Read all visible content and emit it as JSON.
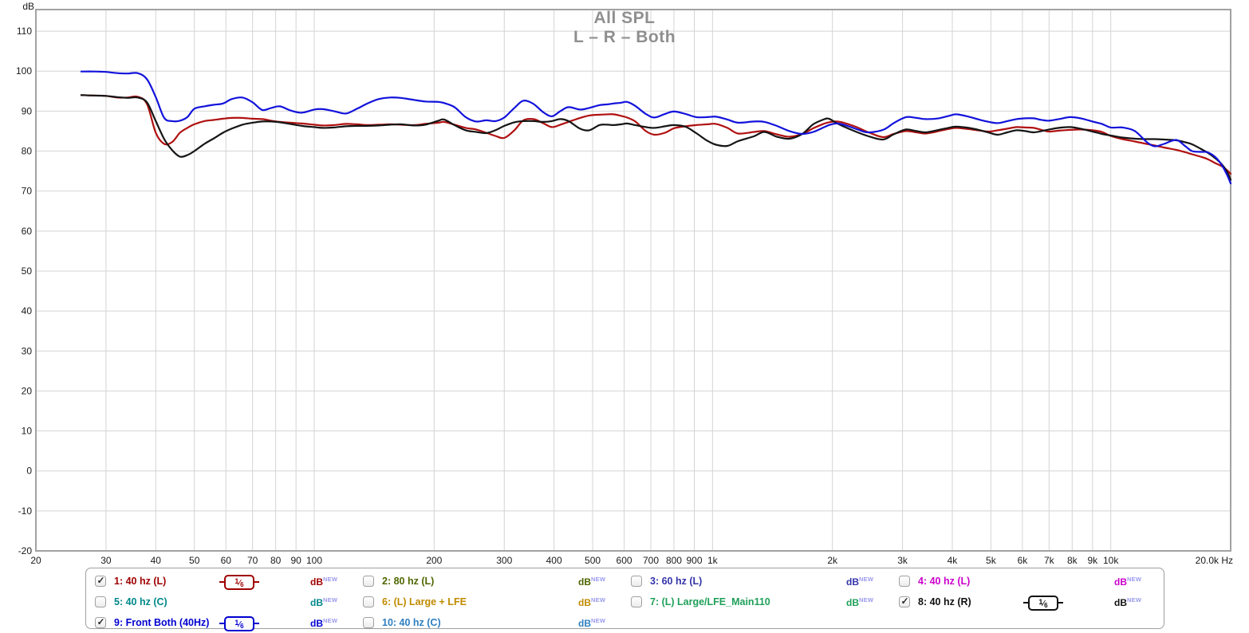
{
  "title": "All SPL",
  "subtitle": "L – R – Both",
  "axes": {
    "y_unit": "dB",
    "y_ticks": [
      -20,
      -10,
      0,
      10,
      20,
      30,
      40,
      50,
      60,
      70,
      80,
      90,
      100,
      110
    ],
    "x_ticks": [
      {
        "f": 20,
        "label": "20"
      },
      {
        "f": 30,
        "label": "30"
      },
      {
        "f": 40,
        "label": "40"
      },
      {
        "f": 50,
        "label": "50"
      },
      {
        "f": 60,
        "label": "60"
      },
      {
        "f": 70,
        "label": "70"
      },
      {
        "f": 80,
        "label": "80"
      },
      {
        "f": 90,
        "label": "90"
      },
      {
        "f": 100,
        "label": "100"
      },
      {
        "f": 200,
        "label": "200"
      },
      {
        "f": 300,
        "label": "300"
      },
      {
        "f": 400,
        "label": "400"
      },
      {
        "f": 500,
        "label": "500"
      },
      {
        "f": 600,
        "label": "600"
      },
      {
        "f": 700,
        "label": "700"
      },
      {
        "f": 800,
        "label": "800"
      },
      {
        "f": 900,
        "label": "900"
      },
      {
        "f": 1000,
        "label": "1k"
      },
      {
        "f": 2000,
        "label": "2k"
      },
      {
        "f": 3000,
        "label": "3k"
      },
      {
        "f": 4000,
        "label": "4k"
      },
      {
        "f": 5000,
        "label": "5k"
      },
      {
        "f": 6000,
        "label": "6k"
      },
      {
        "f": 7000,
        "label": "7k"
      },
      {
        "f": 8000,
        "label": "8k"
      },
      {
        "f": 9000,
        "label": "9k"
      },
      {
        "f": 10000,
        "label": "10k"
      },
      {
        "f": 20000,
        "label": "20.0k Hz"
      }
    ]
  },
  "colors": {
    "grid": "#d4d4d4",
    "frame": "#a2a2a2",
    "title_gray": "#8f8f8f",
    "tick_text": "#1a1a1a"
  },
  "chart_data": {
    "type": "line",
    "title": "All SPL",
    "subtitle": "L – R – Both",
    "x_scale": "log",
    "xlim": [
      20,
      20000
    ],
    "ylim": [
      -20,
      115.4
    ],
    "grid": true,
    "xlabel": "Hz",
    "ylabel": "dB",
    "x": [
      26,
      28,
      30,
      32,
      34,
      36,
      38,
      40,
      42,
      44,
      46,
      48,
      50,
      53,
      56,
      59,
      62,
      66,
      70,
      74,
      78,
      82,
      87,
      93,
      100,
      105,
      112,
      120,
      128,
      136,
      145,
      155,
      165,
      178,
      190,
      205,
      212,
      225,
      240,
      255,
      270,
      285,
      300,
      318,
      335,
      355,
      375,
      395,
      415,
      435,
      465,
      490,
      520,
      545,
      565,
      590,
      610,
      640,
      680,
      715,
      760,
      800,
      855,
      910,
      970,
      1020,
      1090,
      1160,
      1270,
      1350,
      1450,
      1560,
      1680,
      1790,
      1900,
      1960,
      2050,
      2150,
      2300,
      2450,
      2680,
      2850,
      3060,
      3250,
      3430,
      3700,
      3950,
      4100,
      4400,
      4700,
      4950,
      5200,
      5500,
      5800,
      6100,
      6400,
      6700,
      7000,
      7400,
      7900,
      8400,
      9000,
      9500,
      10000,
      10700,
      11500,
      12300,
      12900,
      13600,
      14600,
      15400,
      16000,
      16800,
      17500,
      18300,
      19000,
      19600,
      20000
    ],
    "series": [
      {
        "name": "1: 40 hz (L)",
        "color": "#b01010",
        "width": 2.2,
        "values": [
          94.0,
          93.9,
          93.8,
          93.4,
          93.4,
          93.6,
          91.8,
          84.6,
          81.8,
          82.3,
          84.6,
          85.8,
          86.7,
          87.5,
          87.8,
          88.1,
          88.3,
          88.3,
          88.1,
          88.0,
          87.6,
          87.3,
          87.1,
          86.9,
          86.6,
          86.4,
          86.5,
          86.8,
          86.7,
          86.5,
          86.6,
          86.7,
          86.6,
          86.5,
          86.8,
          87.1,
          87.3,
          86.6,
          85.8,
          85.4,
          84.6,
          83.8,
          83.3,
          85.2,
          87.7,
          88.0,
          87.0,
          86.0,
          86.6,
          87.3,
          88.3,
          88.9,
          89.1,
          89.2,
          89.2,
          88.8,
          88.4,
          87.4,
          85.0,
          84.1,
          84.6,
          85.7,
          86.2,
          86.5,
          86.7,
          86.8,
          85.8,
          84.4,
          84.8,
          85.0,
          84.2,
          83.6,
          84.3,
          85.7,
          86.8,
          87.2,
          87.4,
          87.0,
          86.0,
          84.8,
          83.5,
          84.3,
          85.0,
          84.7,
          84.4,
          85.0,
          85.6,
          85.8,
          85.5,
          85.1,
          84.9,
          85.2,
          85.6,
          86.0,
          85.9,
          85.8,
          85.3,
          84.9,
          85.1,
          85.3,
          85.4,
          85.2,
          84.8,
          83.8,
          83.0,
          82.4,
          81.8,
          81.4,
          80.9,
          80.3,
          79.7,
          79.2,
          78.6,
          78.0,
          77.0,
          76.2,
          75.2,
          74.3
        ]
      },
      {
        "name": "8: 40 hz (R)",
        "color": "#151515",
        "width": 2.2,
        "values": [
          94.0,
          93.9,
          93.8,
          93.5,
          93.3,
          93.4,
          92.2,
          87.5,
          83.0,
          80.2,
          78.6,
          79.0,
          80.0,
          81.8,
          83.2,
          84.6,
          85.6,
          86.6,
          87.1,
          87.4,
          87.4,
          87.2,
          86.8,
          86.3,
          86.0,
          85.8,
          85.9,
          86.2,
          86.3,
          86.3,
          86.4,
          86.6,
          86.7,
          86.4,
          86.6,
          87.6,
          87.9,
          86.5,
          85.2,
          84.8,
          84.5,
          85.2,
          86.3,
          87.2,
          87.5,
          87.5,
          87.3,
          87.5,
          88.0,
          87.5,
          85.6,
          85.2,
          86.5,
          86.6,
          86.5,
          86.7,
          86.9,
          86.5,
          86.0,
          85.8,
          86.2,
          86.5,
          86.1,
          84.5,
          82.6,
          81.6,
          81.3,
          82.5,
          83.7,
          84.8,
          83.6,
          83.1,
          84.3,
          86.7,
          87.9,
          88.1,
          87.0,
          86.0,
          84.8,
          83.8,
          82.9,
          84.2,
          85.4,
          85.0,
          84.7,
          85.3,
          85.9,
          86.1,
          85.8,
          85.2,
          84.6,
          84.1,
          84.7,
          85.2,
          85.0,
          84.7,
          85.0,
          85.4,
          85.8,
          86.0,
          85.6,
          84.9,
          84.3,
          83.9,
          83.4,
          83.1,
          83.0,
          83.0,
          82.9,
          82.7,
          82.2,
          81.7,
          80.6,
          79.6,
          78.2,
          76.7,
          74.8,
          72.8
        ]
      },
      {
        "name": "9: Front Both (40Hz)",
        "color": "#1212dc",
        "width": 2.2,
        "values": [
          99.9,
          99.9,
          99.8,
          99.5,
          99.4,
          99.5,
          98.0,
          93.5,
          88.3,
          87.5,
          87.6,
          88.5,
          90.6,
          91.2,
          91.6,
          91.9,
          93.0,
          93.4,
          92.2,
          90.3,
          90.8,
          91.2,
          90.2,
          89.6,
          90.4,
          90.5,
          90.0,
          89.4,
          90.6,
          91.9,
          93.0,
          93.4,
          93.3,
          92.8,
          92.4,
          92.3,
          92.0,
          91.0,
          88.5,
          87.4,
          87.7,
          87.5,
          88.4,
          90.8,
          92.6,
          91.8,
          89.8,
          88.7,
          90.0,
          91.0,
          90.4,
          90.8,
          91.5,
          91.7,
          91.9,
          92.1,
          92.3,
          91.3,
          89.3,
          88.4,
          89.3,
          89.9,
          89.3,
          88.5,
          88.5,
          88.6,
          87.9,
          87.1,
          87.4,
          87.3,
          86.3,
          85.0,
          84.3,
          84.8,
          85.9,
          86.5,
          86.9,
          86.5,
          85.5,
          84.7,
          85.3,
          87.0,
          88.5,
          88.3,
          88.0,
          88.2,
          88.9,
          89.2,
          88.6,
          87.8,
          87.3,
          87.0,
          87.5,
          88.0,
          88.2,
          88.2,
          87.8,
          87.6,
          88.0,
          88.5,
          88.2,
          87.4,
          86.8,
          85.9,
          85.9,
          85.0,
          82.3,
          81.2,
          81.8,
          82.8,
          81.2,
          80.0,
          79.8,
          79.7,
          78.5,
          76.5,
          74.0,
          71.9
        ]
      }
    ]
  },
  "legend": {
    "db_label": "dB",
    "new_label": "NEW",
    "new_color": "#9a9aee",
    "columns": [
      {
        "rows": [
          {
            "label": "1: 40 hz (L)",
            "color": "#a00000",
            "checked": true,
            "smoothing": "1/6"
          },
          {
            "label": "5: 40 hz (C)",
            "color": "#00888a",
            "checked": false,
            "smoothing": null
          },
          {
            "label": "9: Front Both (40Hz)",
            "color": "#0000d0",
            "checked": true,
            "smoothing": "1/6"
          }
        ]
      },
      {
        "rows": [
          {
            "label": "2: 80 hz (L)",
            "color": "#4e6600",
            "checked": false,
            "smoothing": null
          },
          {
            "label": "6: (L) Large + LFE",
            "color": "#c08a00",
            "checked": false,
            "smoothing": null
          },
          {
            "label": "10: 40 hz (C)",
            "color": "#2e7fc2",
            "checked": false,
            "smoothing": null
          }
        ]
      },
      {
        "rows": [
          {
            "label": "3: 60 hz (L)",
            "color": "#3333aa",
            "checked": false,
            "smoothing": null
          },
          {
            "label": "7: (L) Large/LFE_Main110",
            "color": "#1fa05a",
            "checked": false,
            "smoothing": null
          }
        ]
      },
      {
        "rows": [
          {
            "label": "4: 40 hz (L)",
            "color": "#cc00cc",
            "checked": false,
            "smoothing": null
          },
          {
            "label": "8: 40 hz (R)",
            "color": "#111111",
            "checked": true,
            "smoothing": "1/6"
          }
        ]
      }
    ]
  }
}
